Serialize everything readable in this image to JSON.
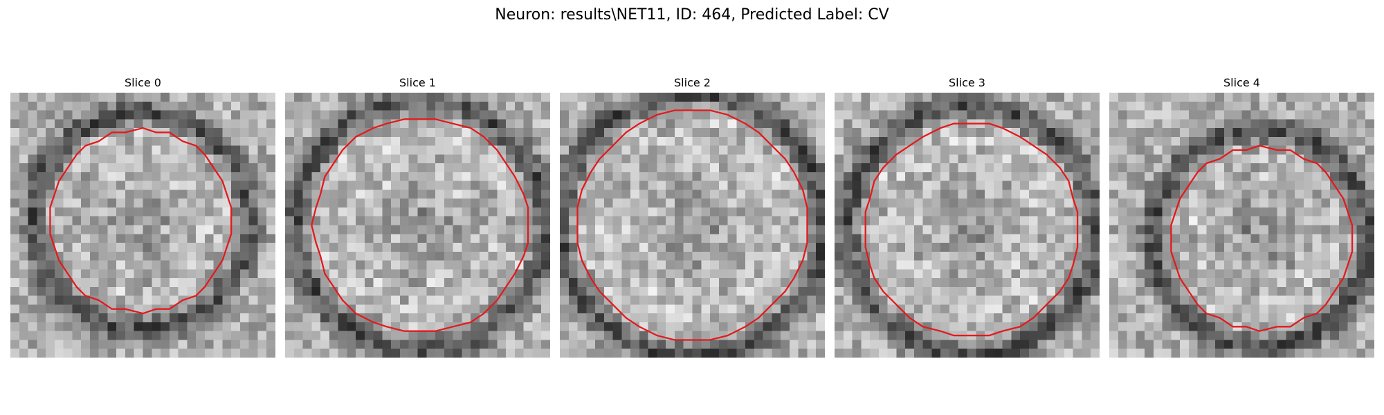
{
  "figure": {
    "title": "Neuron: results\\NET11, ID: 464, Predicted Label: CV"
  },
  "panels": [
    {
      "title": "Slice 0"
    },
    {
      "title": "Slice 1"
    },
    {
      "title": "Slice 2"
    },
    {
      "title": "Slice 3"
    },
    {
      "title": "Slice 4"
    }
  ],
  "colors": {
    "outline": "#e31a1c",
    "background": "#ffffff"
  }
}
